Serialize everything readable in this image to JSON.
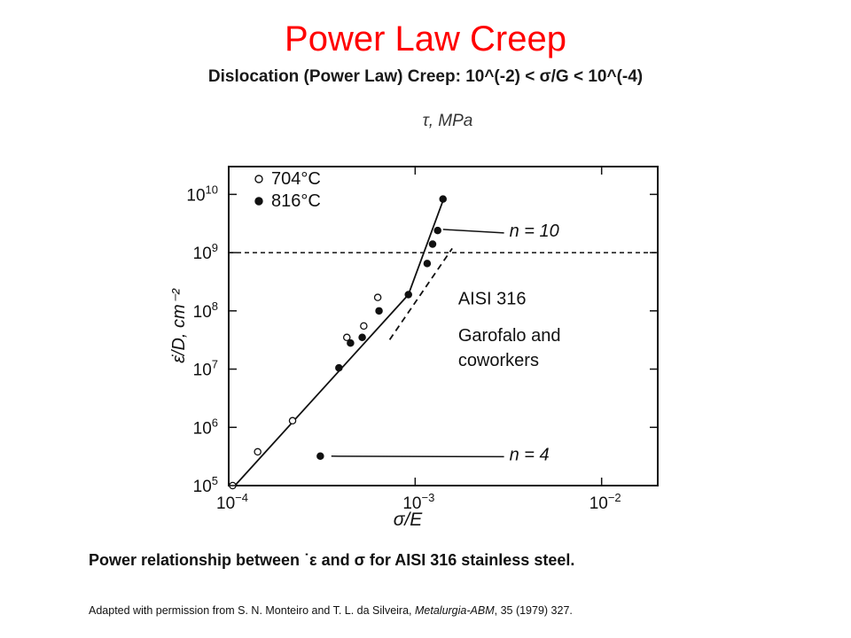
{
  "slide": {
    "title": "Power Law Creep",
    "subtitle": "Dislocation (Power Law) Creep: 10^(-2) < σ/G < 10^(-4)",
    "caption": "Power relationship between ˙ε and σ for AISI 316 stainless steel.",
    "credit_before": "Adapted with permission from S. N. Monteiro and T. L. da Silveira, ",
    "credit_journal": "Metalurgia-ABM",
    "credit_after": ", 35 (1979) 327."
  },
  "chart_data": {
    "type": "scatter",
    "top_axis_label": "τ, MPa",
    "xlabel": "σ/E",
    "ylabel": "ε̇/D, cm⁻²",
    "x_scale": "log",
    "y_scale": "log",
    "xlim": [
      0.0001,
      0.02
    ],
    "ylim": [
      100000,
      30000000000
    ],
    "x_ticks": [
      {
        "value": 0.0001,
        "base": "10",
        "exp": "−4"
      },
      {
        "value": 0.001,
        "base": "10",
        "exp": "−3"
      },
      {
        "value": 0.01,
        "base": "10",
        "exp": "−2"
      }
    ],
    "y_ticks": [
      {
        "value": 100000,
        "base": "10",
        "exp": "5"
      },
      {
        "value": 1000000,
        "base": "10",
        "exp": "6"
      },
      {
        "value": 10000000,
        "base": "10",
        "exp": "7"
      },
      {
        "value": 100000000,
        "base": "10",
        "exp": "8"
      },
      {
        "value": 1000000000,
        "base": "10",
        "exp": "9"
      },
      {
        "value": 10000000000,
        "base": "10",
        "exp": "10"
      }
    ],
    "series": [
      {
        "name": "704°C",
        "marker": "open-circle",
        "points": [
          [
            0.000105,
            100000
          ],
          [
            0.000143,
            380000
          ],
          [
            0.00022,
            1300000
          ],
          [
            0.00043,
            35000000
          ],
          [
            0.00053,
            55000000
          ],
          [
            0.00063,
            170000000
          ]
        ]
      },
      {
        "name": "816°C",
        "marker": "filled-circle",
        "points": [
          [
            0.00031,
            320000
          ],
          [
            0.00039,
            10500000
          ],
          [
            0.00045,
            28000000
          ],
          [
            0.00052,
            35000000
          ],
          [
            0.00064,
            100000000
          ],
          [
            0.00092,
            190000000
          ],
          [
            0.00116,
            650000000
          ],
          [
            0.00124,
            1400000000
          ],
          [
            0.00132,
            2400000000
          ],
          [
            0.00141,
            8300000000
          ]
        ]
      }
    ],
    "fit_lines": [
      {
        "style": "solid",
        "points": [
          [
            0.000108,
            100000
          ],
          [
            0.00092,
            190000000
          ]
        ]
      },
      {
        "style": "solid",
        "points": [
          [
            0.00092,
            190000000
          ],
          [
            0.00142,
            8300000000
          ]
        ]
      },
      {
        "style": "dashed",
        "points": [
          [
            0.00073,
            32000000
          ],
          [
            0.00158,
            1180000000
          ]
        ]
      }
    ],
    "reference_line": {
      "style": "dashed",
      "y": 1000000000
    },
    "annotations": [
      {
        "text": "n = 10",
        "point": [
          0.00135,
          2500000000
        ],
        "label_at": [
          0.0032,
          2500000000
        ]
      },
      {
        "text": "n = 4",
        "point": [
          0.00034,
          320000
        ],
        "label_at": [
          0.0032,
          360000
        ]
      },
      {
        "text": "AISI 316",
        "at": [
          0.0017,
          170000000
        ]
      },
      {
        "text": "Garofalo and",
        "at": [
          0.0017,
          40000000
        ]
      },
      {
        "text": "coworkers",
        "at": [
          0.0017,
          15000000
        ]
      }
    ],
    "legend": {
      "position": "top-left"
    },
    "grid": false
  }
}
